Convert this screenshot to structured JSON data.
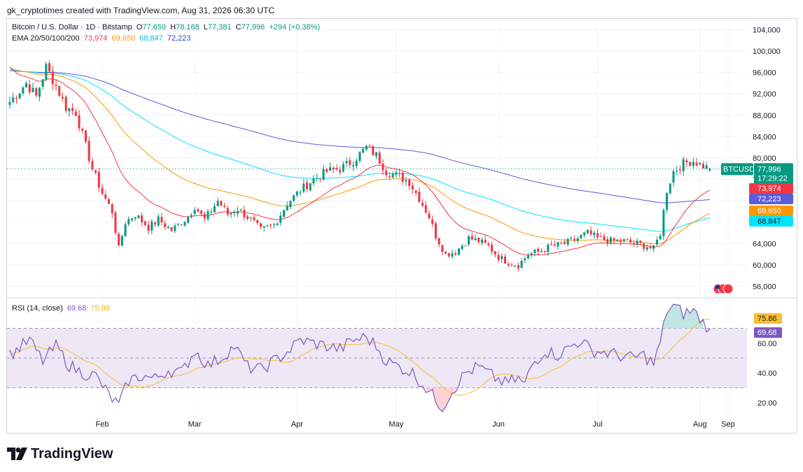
{
  "header": {
    "text": "gk_cryptotimes created with TradingView.com, Aug 31, 2026 06:30 UTC"
  },
  "legend": {
    "symbol": "Bitcoin / U.S. Dollar · 1D · Bitstamp",
    "o_label": "O",
    "o": "77,659",
    "h_label": "H",
    "h": "78,168",
    "l_label": "L",
    "l": "77,381",
    "c_label": "C",
    "c": "77,996",
    "change": "+294 (+0.38%)",
    "ema_label": "EMA 20/50/100/200",
    "ema_values": [
      "73,974",
      "69,650",
      "68,847",
      "72,223"
    ]
  },
  "rsi_legend": {
    "label": "RSI (14, close)",
    "rsi": "69.68",
    "ma": "75.86"
  },
  "footer": {
    "brand": "TradingView"
  },
  "colors": {
    "up": "#089981",
    "down": "#f23645",
    "ema20": "#f23645",
    "ema50": "#ff9800",
    "ema100": "#00e5ff",
    "ema200": "#5b5bdb",
    "rsi": "#7e57c2",
    "rsi_ma": "#fbc02d",
    "rsi_band": "#ede7f6"
  },
  "chart_data": [
    {
      "type": "candlestick",
      "title": "Bitcoin / U.S. Dollar · 1D · Bitstamp",
      "price_ticks": [
        "104,000",
        "100,000",
        "96,000",
        "92,000",
        "88,000",
        "84,000",
        "80,000",
        "76,000",
        "72,000",
        "68,000",
        "64,000",
        "60,000",
        "56,000"
      ],
      "ylim": [
        54000,
        106000
      ],
      "x_ticks": [
        "Feb",
        "Mar",
        "Apr",
        "May",
        "Jun",
        "Jul",
        "Aug",
        "Sep"
      ],
      "last_price": {
        "symbol": "BTCUSD",
        "price": "77,996",
        "countdown": "17:29:22"
      },
      "ema_tags": [
        {
          "name": "EMA 20",
          "value": "73,974",
          "color": "#f23645"
        },
        {
          "name": "EMA 200",
          "value": "72,223",
          "color": "#5b5bdb"
        },
        {
          "name": "EMA 50",
          "value": "69,650",
          "color": "#ff9800"
        },
        {
          "name": "EMA 100",
          "value": "68,847",
          "color": "#00e5ff"
        }
      ],
      "close_keypoints": [
        [
          0,
          90500
        ],
        [
          5,
          94000
        ],
        [
          8,
          91500
        ],
        [
          11,
          97000
        ],
        [
          14,
          93500
        ],
        [
          17,
          89500
        ],
        [
          20,
          88500
        ],
        [
          25,
          78000
        ],
        [
          28,
          73500
        ],
        [
          31,
          70000
        ],
        [
          33,
          63000
        ],
        [
          35,
          68000
        ],
        [
          38,
          69500
        ],
        [
          42,
          67000
        ],
        [
          45,
          68500
        ],
        [
          49,
          66500
        ],
        [
          54,
          69000
        ],
        [
          56,
          71000
        ],
        [
          59,
          68500
        ],
        [
          63,
          72000
        ],
        [
          66,
          69500
        ],
        [
          69,
          70500
        ],
        [
          73,
          68500
        ],
        [
          76,
          66500
        ],
        [
          80,
          67500
        ],
        [
          84,
          71500
        ],
        [
          88,
          74000
        ],
        [
          92,
          76000
        ],
        [
          96,
          77500
        ],
        [
          100,
          78000
        ],
        [
          104,
          79500
        ],
        [
          108,
          82000
        ],
        [
          111,
          80500
        ],
        [
          114,
          77500
        ],
        [
          118,
          76500
        ],
        [
          121,
          75500
        ],
        [
          124,
          72500
        ],
        [
          127,
          69000
        ],
        [
          129,
          65500
        ],
        [
          132,
          62000
        ],
        [
          135,
          62500
        ],
        [
          139,
          65000
        ],
        [
          142,
          64500
        ],
        [
          145,
          63500
        ],
        [
          148,
          61500
        ],
        [
          151,
          60500
        ],
        [
          154,
          60000
        ],
        [
          157,
          62000
        ],
        [
          160,
          62500
        ],
        [
          164,
          63500
        ],
        [
          168,
          64000
        ],
        [
          172,
          65000
        ],
        [
          175,
          66000
        ],
        [
          178,
          65000
        ],
        [
          182,
          64500
        ],
        [
          186,
          64500
        ],
        [
          190,
          64000
        ],
        [
          193,
          63500
        ],
        [
          195,
          63000
        ],
        [
          197,
          66000
        ],
        [
          199,
          74000
        ],
        [
          201,
          77500
        ],
        [
          204,
          79000
        ],
        [
          207,
          79500
        ],
        [
          210,
          78500
        ],
        [
          212,
          77996
        ]
      ],
      "ema_endpoints": {
        "ema20": 73974,
        "ema50": 69650,
        "ema100": 68847,
        "ema200": 72223
      }
    },
    {
      "type": "line",
      "title": "RSI (14, close)",
      "y_ticks": [
        "60.00",
        "40.00",
        "20.00"
      ],
      "ylim": [
        10,
        90
      ],
      "levels": [
        70,
        50,
        30
      ],
      "series": [
        {
          "name": "RSI",
          "last": 69.68
        },
        {
          "name": "RSI MA",
          "last": 75.86
        }
      ],
      "rsi_keypoints": [
        [
          0,
          52
        ],
        [
          6,
          62
        ],
        [
          10,
          48
        ],
        [
          14,
          58
        ],
        [
          18,
          45
        ],
        [
          22,
          40
        ],
        [
          26,
          38
        ],
        [
          30,
          25
        ],
        [
          33,
          18
        ],
        [
          36,
          35
        ],
        [
          40,
          38
        ],
        [
          44,
          36
        ],
        [
          48,
          42
        ],
        [
          52,
          40
        ],
        [
          56,
          55
        ],
        [
          60,
          45
        ],
        [
          64,
          50
        ],
        [
          68,
          58
        ],
        [
          72,
          44
        ],
        [
          76,
          42
        ],
        [
          80,
          48
        ],
        [
          84,
          54
        ],
        [
          88,
          62
        ],
        [
          92,
          60
        ],
        [
          96,
          58
        ],
        [
          100,
          56
        ],
        [
          104,
          62
        ],
        [
          108,
          64
        ],
        [
          111,
          58
        ],
        [
          114,
          48
        ],
        [
          118,
          44
        ],
        [
          122,
          40
        ],
        [
          126,
          30
        ],
        [
          129,
          22
        ],
        [
          131,
          17
        ],
        [
          134,
          28
        ],
        [
          138,
          40
        ],
        [
          142,
          44
        ],
        [
          146,
          38
        ],
        [
          150,
          33
        ],
        [
          154,
          36
        ],
        [
          156,
          32
        ],
        [
          158,
          45
        ],
        [
          162,
          55
        ],
        [
          166,
          52
        ],
        [
          170,
          58
        ],
        [
          173,
          62
        ],
        [
          176,
          55
        ],
        [
          180,
          54
        ],
        [
          184,
          52
        ],
        [
          188,
          50
        ],
        [
          192,
          52
        ],
        [
          195,
          46
        ],
        [
          197,
          60
        ],
        [
          199,
          82
        ],
        [
          201,
          85
        ],
        [
          204,
          80
        ],
        [
          207,
          82
        ],
        [
          210,
          74
        ],
        [
          212,
          69.68
        ]
      ]
    }
  ]
}
